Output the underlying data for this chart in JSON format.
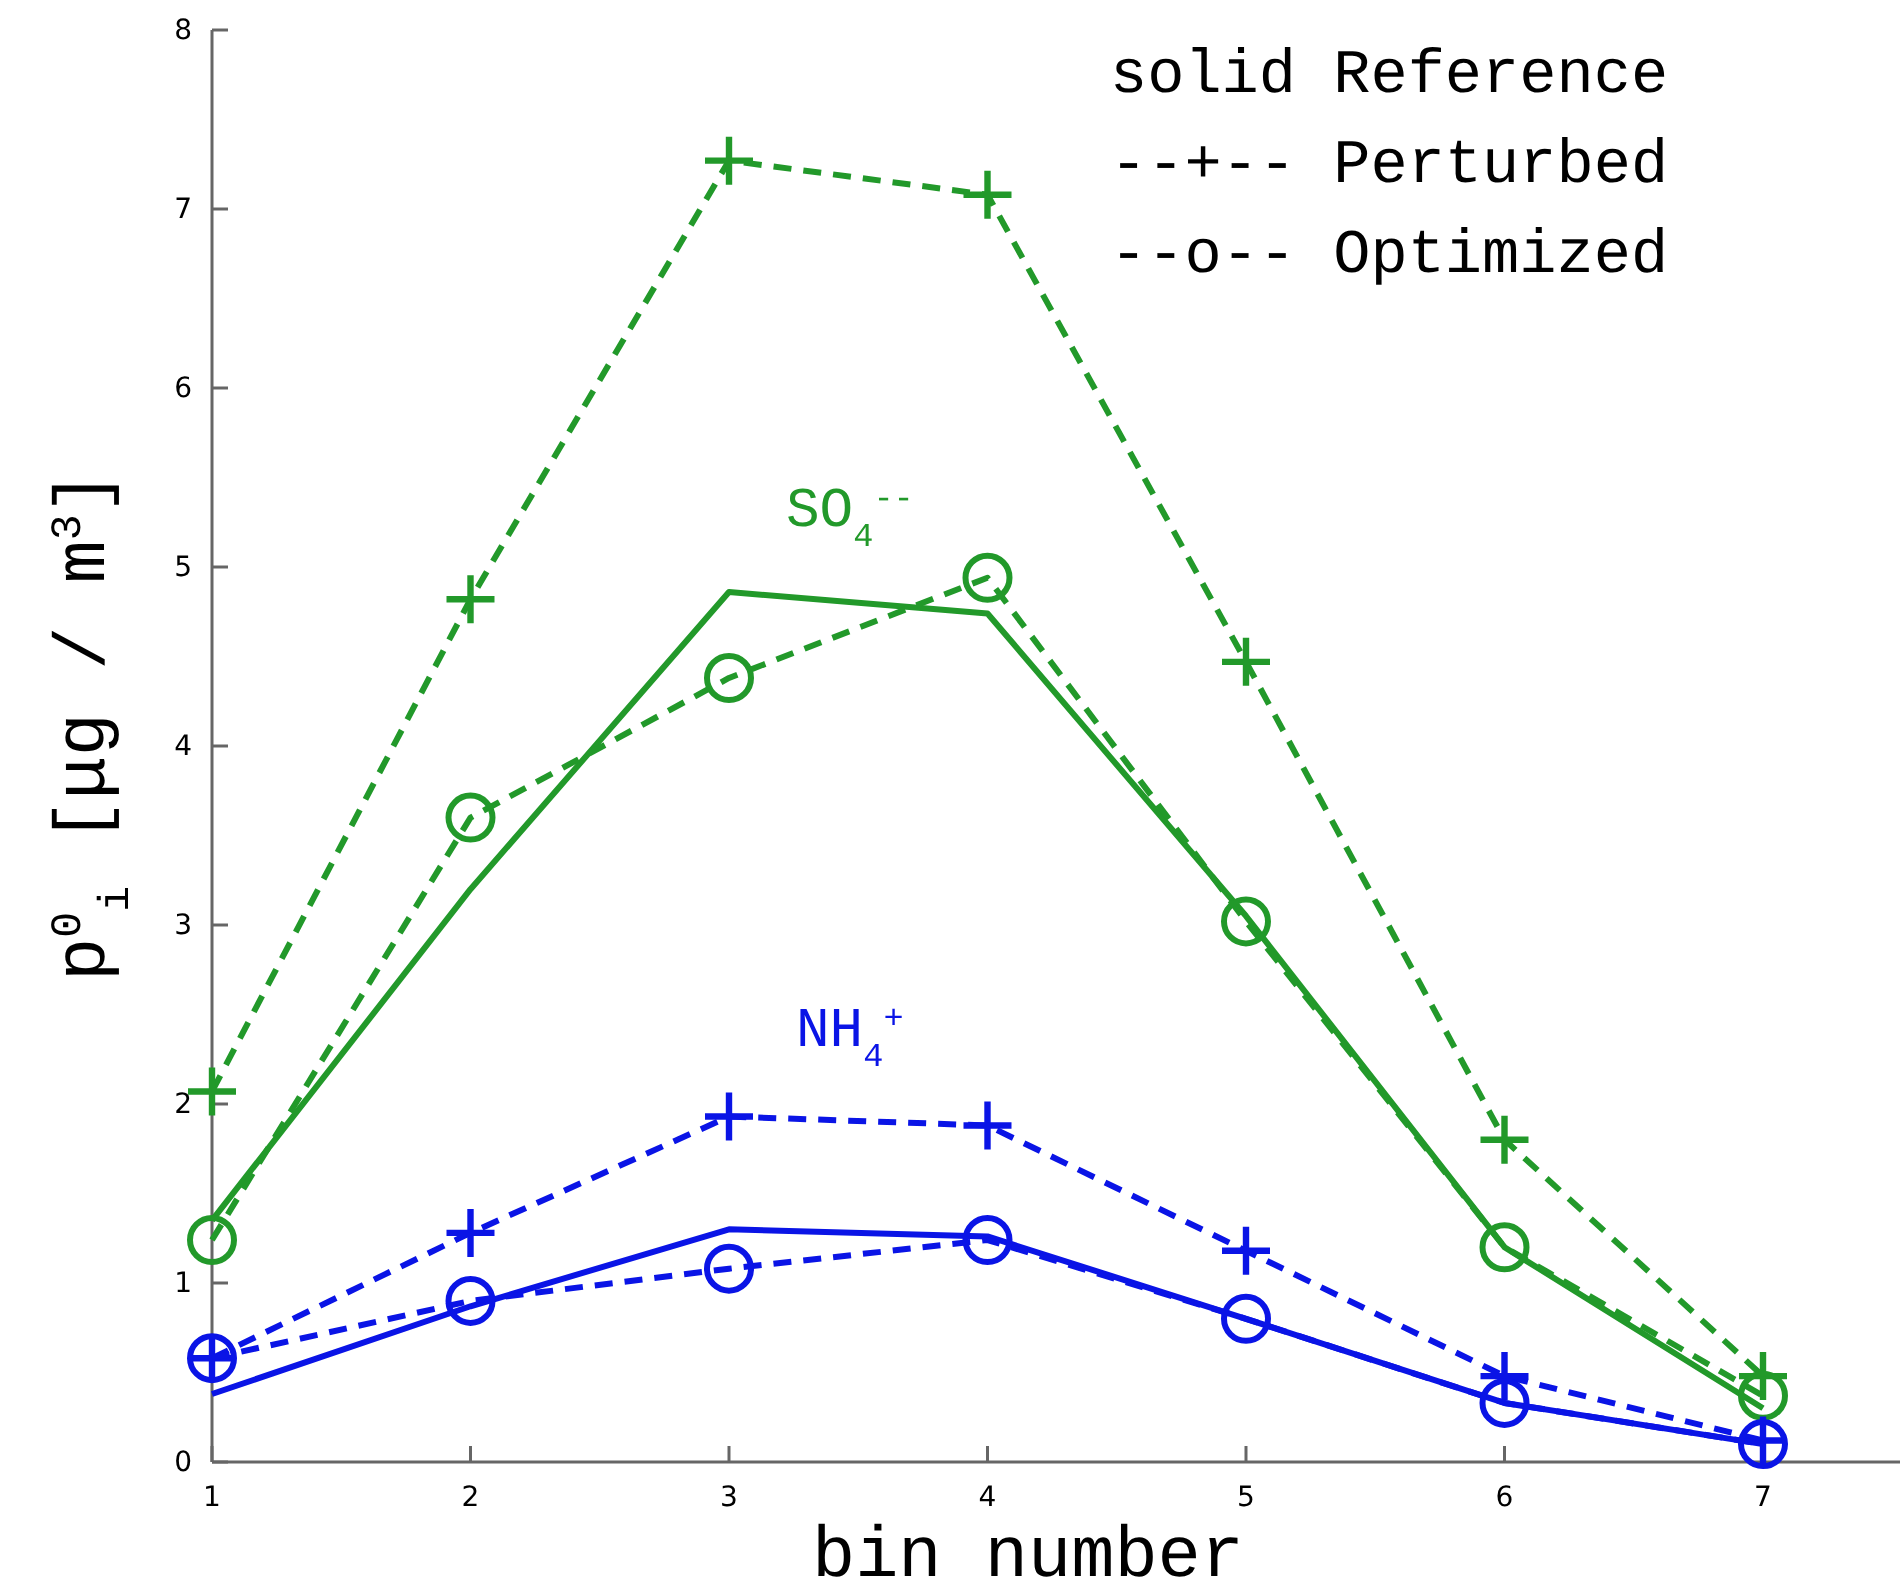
{
  "chart_data": {
    "type": "line",
    "xlabel": "bin number",
    "ylabel": "p$^{0}$$_{i}$ [μg / m$^{3}$]",
    "x": [
      1,
      2,
      3,
      4,
      5,
      6,
      7
    ],
    "xlim": [
      1,
      7.53
    ],
    "xticks": [
      1,
      2,
      3,
      4,
      5,
      6,
      7
    ],
    "ylim": [
      0,
      8
    ],
    "yticks": [
      0,
      1,
      2,
      3,
      4,
      5,
      6,
      7,
      8
    ],
    "grid": false,
    "series": [
      {
        "color": "#22992a",
        "line_style": "dashed",
        "marker": "cross",
        "values": [
          2.07,
          4.82,
          7.27,
          7.08,
          4.47,
          1.8,
          0.48
        ]
      },
      {
        "color": "#22992a",
        "line_style": "solid",
        "marker": "none",
        "values": [
          1.35,
          3.2,
          4.86,
          4.74,
          3.05,
          1.2,
          0.3
        ]
      },
      {
        "color": "#22992a",
        "line_style": "dashed",
        "marker": "circle",
        "values": [
          1.24,
          3.6,
          4.38,
          4.94,
          3.02,
          1.2,
          0.37
        ]
      },
      {
        "color": "#0a14e6",
        "line_style": "dashed",
        "marker": "cross",
        "values": [
          0.58,
          1.28,
          1.93,
          1.88,
          1.18,
          0.48,
          0.12
        ]
      },
      {
        "color": "#0a14e6",
        "line_style": "solid",
        "marker": "none",
        "values": [
          0.38,
          0.87,
          1.3,
          1.26,
          0.8,
          0.33,
          0.1
        ]
      },
      {
        "color": "#0a14e6",
        "line_style": "dashed",
        "marker": "circle",
        "values": [
          0.58,
          0.9,
          1.08,
          1.24,
          0.8,
          0.33,
          0.1
        ]
      }
    ],
    "annotations": [
      "solid Reference",
      "--+-- Perturbed",
      "--o-- Optimized",
      "SO$_{4}$$^{--}$",
      "NH$_{4}$$^{+}$"
    ]
  }
}
